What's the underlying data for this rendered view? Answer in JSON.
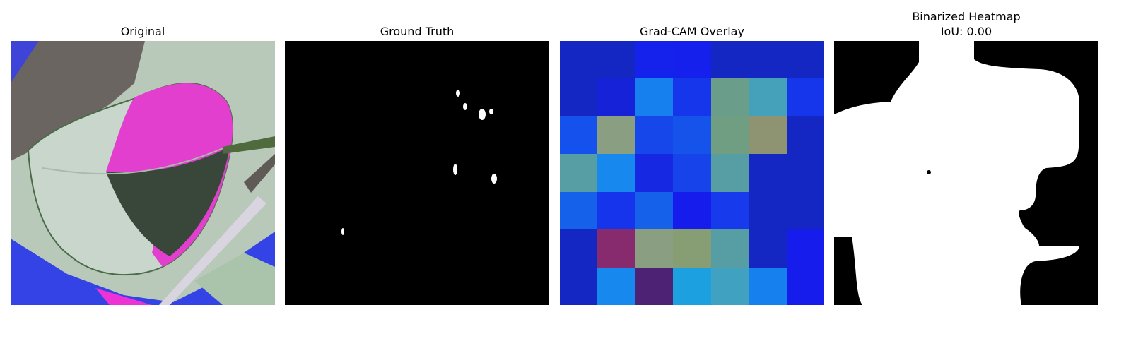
{
  "panels": [
    {
      "title": "Original"
    },
    {
      "title": "Ground Truth"
    },
    {
      "title": "Grad-CAM Overlay"
    },
    {
      "title_line1": "Binarized Heatmap",
      "title_line2": "IoU: 0.00"
    }
  ],
  "gradcam": {
    "cells": [
      [
        "#1527c2",
        "#1527c2",
        "#1522ec",
        "#1520ec",
        "#1527c2",
        "#1527c2",
        "#1527c2"
      ],
      [
        "#1527c2",
        "#1522d8",
        "#1681ee",
        "#1636ec",
        "#6a9e8a",
        "#44a1b9",
        "#1636ec"
      ],
      [
        "#1551ec",
        "#8a9f81",
        "#1647ea",
        "#1653ea",
        "#709e83",
        "#8e9372",
        "#1527c2"
      ],
      [
        "#569ea3",
        "#1688ee",
        "#1628e2",
        "#1643ea",
        "#569ea3",
        "#1527c2",
        "#1527c2"
      ],
      [
        "#1661ea",
        "#1634ec",
        "#1661ea",
        "#161cec",
        "#163aec",
        "#1527c2",
        "#1527c2"
      ],
      [
        "#1527c2",
        "#872b6e",
        "#8a9f81",
        "#879d73",
        "#569ea3",
        "#1527c2",
        "#161cec"
      ],
      [
        "#1527c2",
        "#1688ee",
        "#4d2274",
        "#1da0e0",
        "#41a1c1",
        "#1681ee",
        "#161cec"
      ]
    ]
  }
}
